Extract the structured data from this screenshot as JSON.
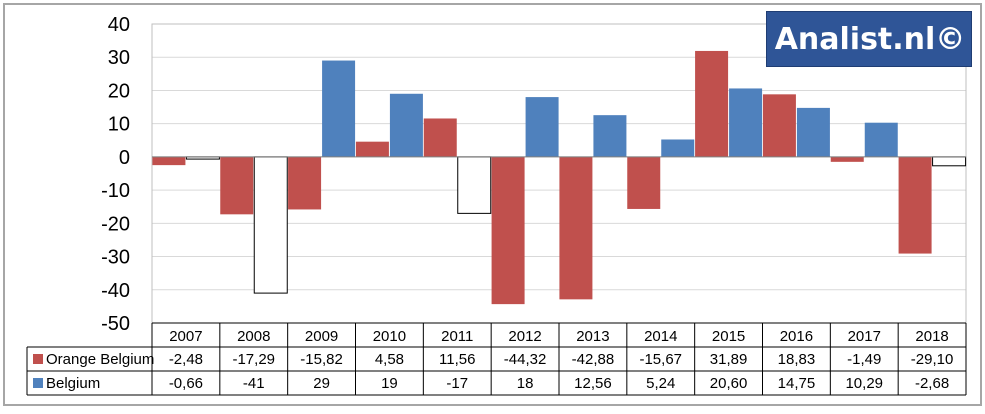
{
  "logo": {
    "text": "Analist.nl©"
  },
  "chart_data": {
    "type": "bar",
    "title": "",
    "xlabel": "",
    "ylabel": "",
    "ylim": [
      -50,
      40
    ],
    "yticks": [
      40,
      30,
      20,
      10,
      0,
      -10,
      -20,
      -30,
      -40,
      -50
    ],
    "grid": true,
    "legend": "bottom-left data table",
    "categories": [
      "2007",
      "2008",
      "2009",
      "2010",
      "2011",
      "2012",
      "2013",
      "2014",
      "2015",
      "2016",
      "2017",
      "2018"
    ],
    "series": [
      {
        "name": "Orange Belgium",
        "color": "#c0504d",
        "values": [
          -2.48,
          -17.29,
          -15.82,
          4.58,
          11.56,
          -44.32,
          -42.88,
          -15.67,
          31.89,
          18.83,
          -1.49,
          -29.1
        ],
        "labels": [
          "-2,48",
          "-17,29",
          "-15,82",
          "4,58",
          "11,56",
          "-44,32",
          "-42,88",
          "-15,67",
          "31,89",
          "18,83",
          "-1,49",
          "-29,10"
        ]
      },
      {
        "name": "Belgium",
        "color": "#4f81bd",
        "values": [
          -0.66,
          -41,
          29,
          19,
          -17,
          18,
          12.56,
          5.24,
          20.6,
          14.75,
          10.29,
          -2.68
        ],
        "labels": [
          "-0,66",
          "-41",
          "29",
          "19",
          "-17",
          "18",
          "12,56",
          "5,24",
          "20,60",
          "14,75",
          "10,29",
          "-2,68"
        ],
        "negative_fill": "#ffffff"
      }
    ]
  }
}
